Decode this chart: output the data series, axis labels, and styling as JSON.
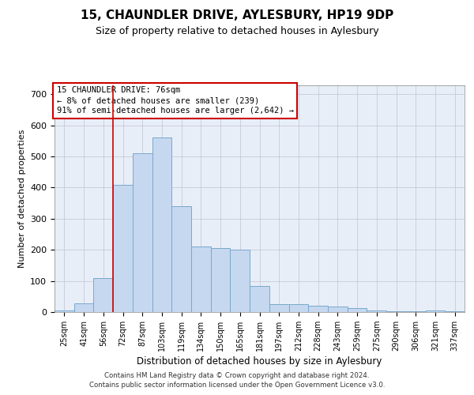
{
  "title1": "15, CHAUNDLER DRIVE, AYLESBURY, HP19 9DP",
  "title2": "Size of property relative to detached houses in Aylesbury",
  "xlabel": "Distribution of detached houses by size in Aylesbury",
  "ylabel": "Number of detached properties",
  "categories": [
    "25sqm",
    "41sqm",
    "56sqm",
    "72sqm",
    "87sqm",
    "103sqm",
    "119sqm",
    "134sqm",
    "150sqm",
    "165sqm",
    "181sqm",
    "197sqm",
    "212sqm",
    "228sqm",
    "243sqm",
    "259sqm",
    "275sqm",
    "290sqm",
    "306sqm",
    "321sqm",
    "337sqm"
  ],
  "values": [
    5,
    28,
    110,
    410,
    510,
    560,
    340,
    210,
    205,
    200,
    85,
    25,
    25,
    20,
    18,
    12,
    4,
    2,
    2,
    4,
    2
  ],
  "bar_color": "#c5d8f0",
  "bar_edge_color": "#7aa8cc",
  "bar_linewidth": 0.7,
  "grid_color": "#c8c8d8",
  "bg_color": "#e8eef8",
  "red_line_x": 2.5,
  "annotation_text": "15 CHAUNDLER DRIVE: 76sqm\n← 8% of detached houses are smaller (239)\n91% of semi-detached houses are larger (2,642) →",
  "annotation_box_facecolor": "#ffffff",
  "annotation_box_edgecolor": "#cc0000",
  "ylim": [
    0,
    730
  ],
  "yticks": [
    0,
    100,
    200,
    300,
    400,
    500,
    600,
    700
  ],
  "footer": "Contains HM Land Registry data © Crown copyright and database right 2024.\nContains public sector information licensed under the Open Government Licence v3.0."
}
